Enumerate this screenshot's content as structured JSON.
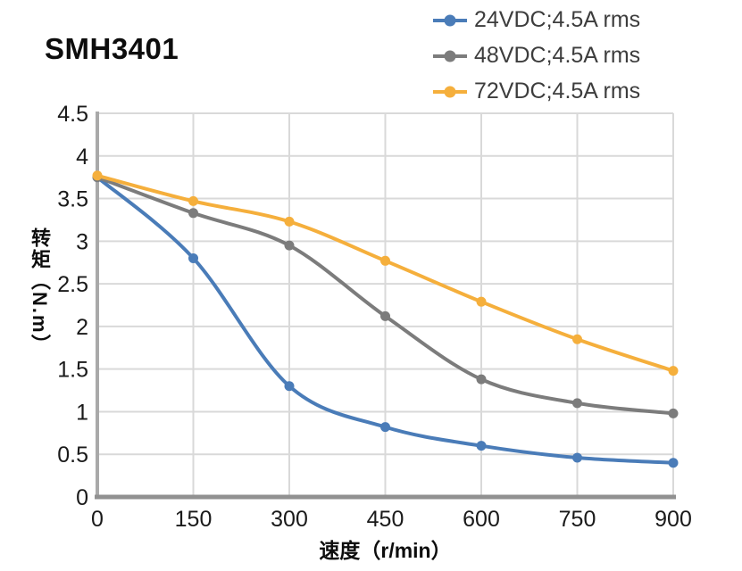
{
  "title": "SMH3401",
  "y_axis_title": "转矩（N.m）",
  "x_axis_title": "速度（r/min）",
  "colors": {
    "grid": "#d9d9d9",
    "axis_left": "#a9a9a9",
    "axis_bottom": "#919191",
    "tick_text": "#1a1a1a",
    "legend_text": "#3d3d3d",
    "series_blue": "#4a7cb8",
    "series_gray": "#7c7c7c",
    "series_orange": "#f5af3c"
  },
  "chart_data": {
    "type": "line",
    "title": "SMH3401",
    "xlabel": "速度（r/min）",
    "ylabel": "转矩（N.m）",
    "x": [
      0,
      150,
      300,
      450,
      600,
      750,
      900
    ],
    "x_tick_labels": [
      "0",
      "150",
      "300",
      "450",
      "600",
      "750",
      "900"
    ],
    "y_ticks": [
      0,
      0.5,
      1,
      1.5,
      2,
      2.5,
      3,
      3.5,
      4,
      4.5
    ],
    "y_tick_labels": [
      "0",
      "0.5",
      "1",
      "1.5",
      "2",
      "2.5",
      "3",
      "3.5",
      "4",
      "4.5"
    ],
    "xlim": [
      0,
      900
    ],
    "ylim": [
      0,
      4.5
    ],
    "grid": true,
    "legend_position": "top-right",
    "line_style": "smooth",
    "marker": "circle",
    "series": [
      {
        "name": "24VDC;4.5A rms",
        "color": "#4a7cb8",
        "values": [
          3.75,
          2.8,
          1.3,
          0.82,
          0.6,
          0.46,
          0.4
        ]
      },
      {
        "name": "48VDC;4.5A rms",
        "color": "#7c7c7c",
        "values": [
          3.75,
          3.33,
          2.95,
          2.12,
          1.38,
          1.1,
          0.98
        ]
      },
      {
        "name": "72VDC;4.5A rms",
        "color": "#f5af3c",
        "values": [
          3.77,
          3.47,
          3.23,
          2.77,
          2.29,
          1.85,
          1.48
        ]
      }
    ]
  }
}
